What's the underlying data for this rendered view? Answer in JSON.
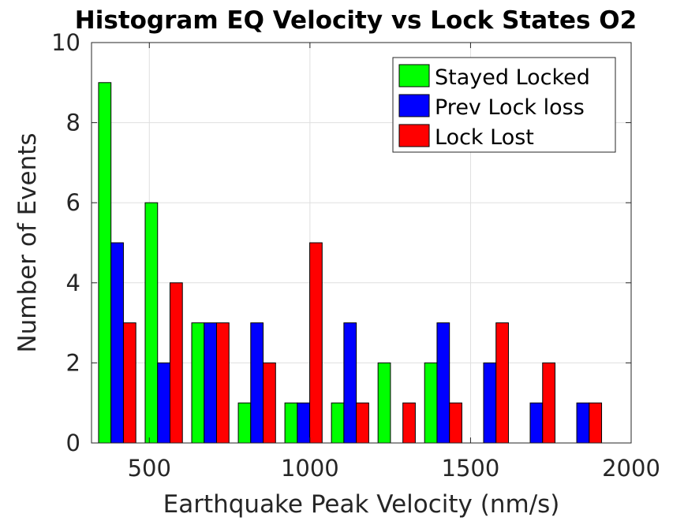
{
  "chart_data": {
    "type": "bar",
    "title": "Histogram EQ Velocity vs Lock States O2",
    "xlabel": "Earthquake Peak Velocity (nm/s)",
    "ylabel": "Number of Events",
    "xlim": [
      320,
      2000
    ],
    "ylim": [
      0,
      10
    ],
    "xticks": [
      500,
      1000,
      1500,
      2000
    ],
    "yticks": [
      0,
      2,
      4,
      6,
      8,
      10
    ],
    "grid": true,
    "legend_position": "top-right",
    "bin_centers": [
      400,
      545,
      690,
      835,
      980,
      1125,
      1270,
      1415,
      1560,
      1705,
      1850
    ],
    "series": [
      {
        "name": "Stayed Locked",
        "color": "#00ff00",
        "values": [
          9,
          6,
          3,
          1,
          1,
          1,
          2,
          2,
          0,
          0,
          0
        ]
      },
      {
        "name": "Prev Lock loss",
        "color": "#0000ff",
        "values": [
          5,
          2,
          3,
          3,
          1,
          3,
          0,
          3,
          2,
          1,
          1
        ]
      },
      {
        "name": "Lock Lost",
        "color": "#ff0000",
        "values": [
          3,
          4,
          3,
          2,
          5,
          1,
          1,
          1,
          3,
          2,
          1
        ]
      }
    ]
  }
}
